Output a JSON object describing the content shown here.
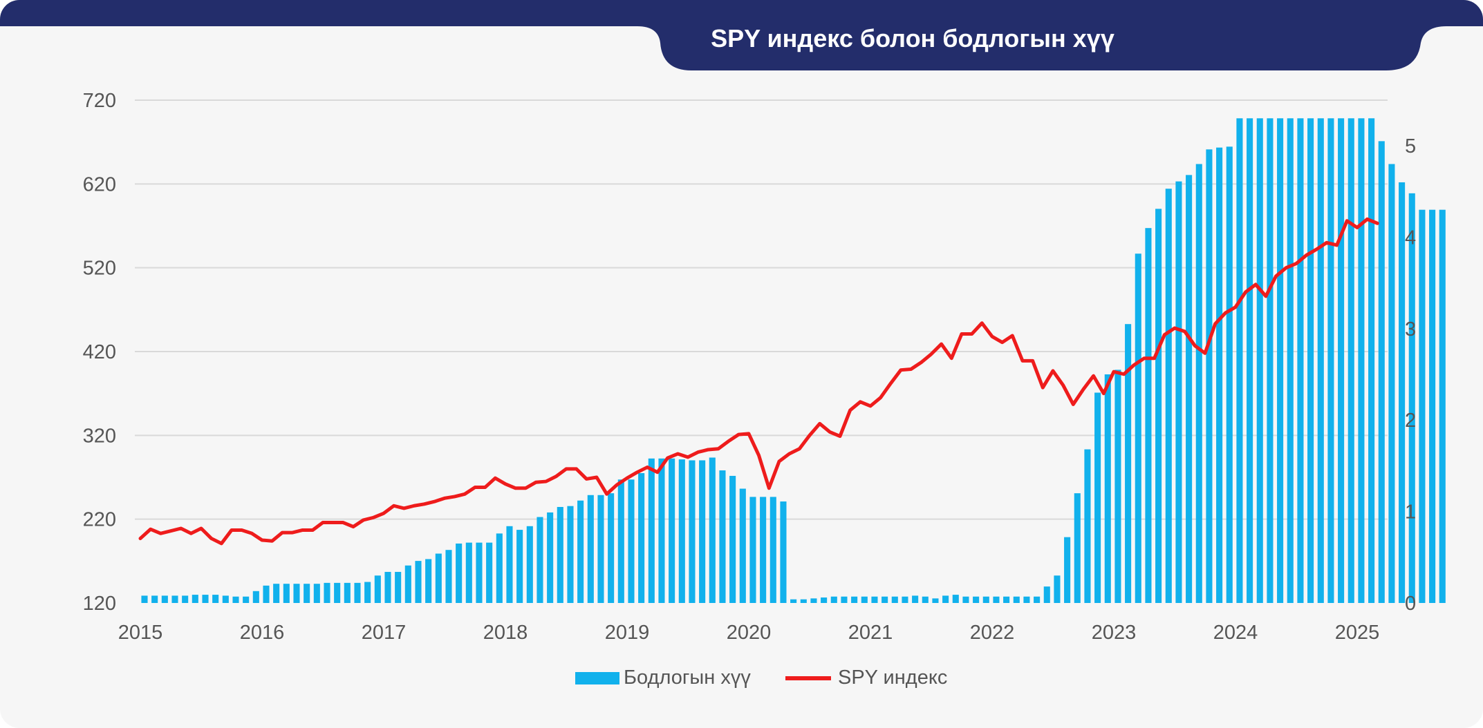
{
  "title": "SPY индекс болон бодлогын хүү",
  "colors": {
    "header": "#232d6b",
    "background": "#f6f6f6",
    "bars": "#11b1ec",
    "line": "#ee1c1c",
    "grid": "#d9d9d9"
  },
  "chart_data": {
    "type": "bar+line",
    "x_start": 2015.0,
    "x_step": 0.08333,
    "xlim": [
      2015,
      2025.25
    ],
    "x_ticks": [
      "2015",
      "2016",
      "2017",
      "2018",
      "2019",
      "2020",
      "2021",
      "2022",
      "2023",
      "2024",
      "2025"
    ],
    "left_axis": {
      "ylim": [
        120,
        720
      ],
      "ticks": [
        "120",
        "220",
        "320",
        "420",
        "520",
        "620",
        "720"
      ]
    },
    "right_axis": {
      "ylim": [
        0,
        5.5
      ],
      "ticks": [
        "0",
        "1",
        "2",
        "3",
        "4",
        "5"
      ]
    },
    "legend": {
      "position": "bottom"
    },
    "series": [
      {
        "name": "Бодлогын хүү",
        "type": "bar",
        "axis": "right",
        "values": [
          0.08,
          0.08,
          0.08,
          0.08,
          0.08,
          0.09,
          0.09,
          0.09,
          0.08,
          0.07,
          0.07,
          0.13,
          0.19,
          0.21,
          0.21,
          0.21,
          0.21,
          0.21,
          0.22,
          0.22,
          0.22,
          0.22,
          0.23,
          0.3,
          0.34,
          0.34,
          0.41,
          0.46,
          0.48,
          0.54,
          0.58,
          0.65,
          0.66,
          0.66,
          0.66,
          0.76,
          0.84,
          0.8,
          0.84,
          0.94,
          0.99,
          1.05,
          1.06,
          1.12,
          1.18,
          1.18,
          1.2,
          1.35,
          1.35,
          1.42,
          1.58,
          1.58,
          1.58,
          1.57,
          1.56,
          1.56,
          1.59,
          1.45,
          1.39,
          1.25,
          1.16,
          1.16,
          1.16,
          1.11,
          0.04,
          0.04,
          0.05,
          0.06,
          0.07,
          0.07,
          0.07,
          0.07,
          0.07,
          0.07,
          0.07,
          0.07,
          0.08,
          0.07,
          0.05,
          0.08,
          0.09,
          0.07,
          0.07,
          0.07,
          0.07,
          0.07,
          0.07,
          0.07,
          0.07,
          0.18,
          0.3,
          0.72,
          1.2,
          1.68,
          2.3,
          2.5,
          2.55,
          3.05,
          3.82,
          4.1,
          4.31,
          4.53,
          4.61,
          4.68,
          4.8,
          4.96,
          4.98,
          4.99,
          5.3,
          5.3,
          5.3,
          5.3,
          5.3,
          5.3,
          5.3,
          5.3,
          5.3,
          5.3,
          5.3,
          5.3,
          5.3,
          5.3,
          5.05,
          4.8,
          4.6,
          4.48,
          4.3,
          4.3,
          4.3
        ]
      },
      {
        "name": "SPY индекс",
        "type": "line",
        "axis": "left",
        "values": [
          197,
          208,
          203,
          206,
          209,
          203,
          209,
          197,
          191,
          207,
          207,
          203,
          195,
          194,
          204,
          204,
          207,
          207,
          216,
          216,
          216,
          211,
          219,
          222,
          227,
          236,
          233,
          236,
          238,
          241,
          245,
          247,
          250,
          258,
          258,
          269,
          262,
          257,
          257,
          264,
          265,
          271,
          280,
          280,
          268,
          270,
          250,
          261,
          269,
          276,
          282,
          276,
          293,
          298,
          294,
          300,
          303,
          304,
          313,
          321,
          322,
          296,
          257,
          289,
          298,
          304,
          320,
          334,
          324,
          319,
          350,
          360,
          355,
          365,
          382,
          398,
          399,
          407,
          417,
          429,
          412,
          441,
          441,
          454,
          438,
          431,
          439,
          409,
          409,
          377,
          397,
          380,
          357,
          375,
          391,
          370,
          396,
          393,
          404,
          412,
          412,
          440,
          448,
          444,
          427,
          418,
          453,
          466,
          473,
          491,
          500,
          486,
          510,
          520,
          525,
          535,
          542,
          550,
          547,
          576,
          568,
          578,
          573
        ]
      }
    ]
  }
}
